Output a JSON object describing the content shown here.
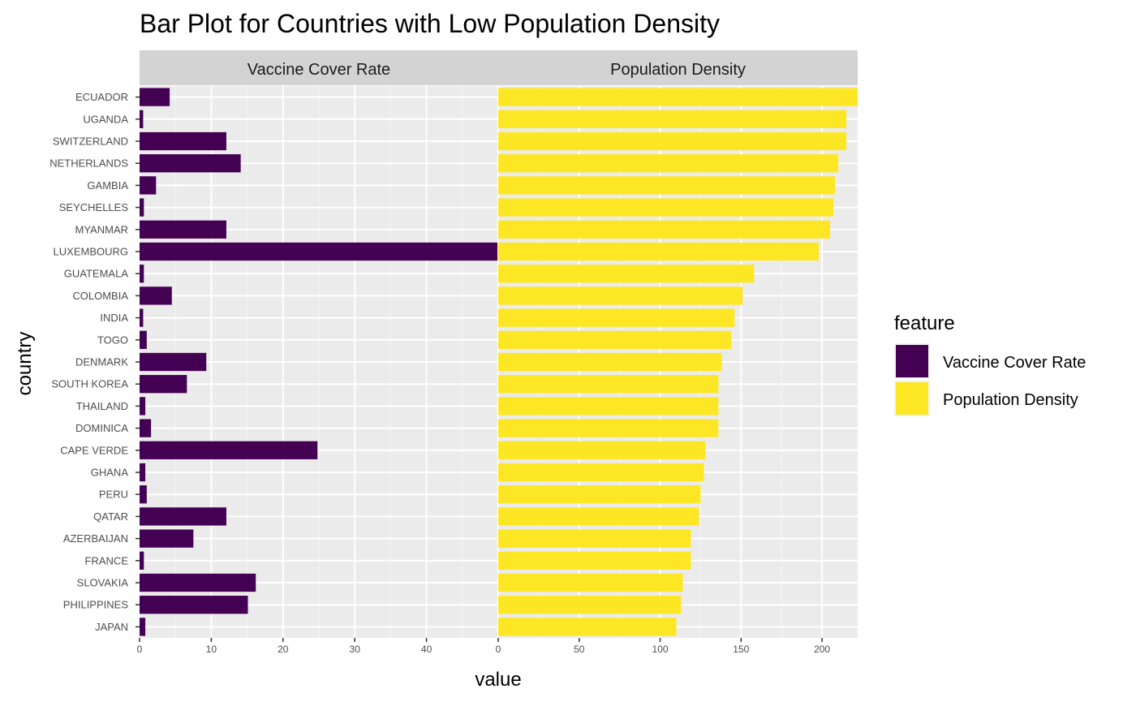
{
  "chart_data": {
    "type": "bar",
    "orientation": "horizontal",
    "title": "Bar Plot for Countries with Low Population Density",
    "xlabel": "value",
    "ylabel": "country",
    "grid": true,
    "legend": {
      "title": "feature",
      "position": "right",
      "entries": [
        {
          "name": "Vaccine Cover Rate",
          "color": "#440154"
        },
        {
          "name": "Population Density",
          "color": "#FDE725"
        }
      ]
    },
    "categories": [
      "ECUADOR",
      "UGANDA",
      "SWITZERLAND",
      "NETHERLANDS",
      "GAMBIA",
      "SEYCHELLES",
      "MYANMAR",
      "LUXEMBOURG",
      "GUATEMALA",
      "COLOMBIA",
      "INDIA",
      "TOGO",
      "DENMARK",
      "SOUTH KOREA",
      "THAILAND",
      "DOMINICA",
      "CAPE VERDE",
      "GHANA",
      "PERU",
      "QATAR",
      "AZERBAIJAN",
      "FRANCE",
      "SLOVAKIA",
      "PHILIPPINES",
      "JAPAN"
    ],
    "panels": [
      {
        "name": "Vaccine Cover Rate",
        "xlim": [
          0,
          50
        ],
        "xticks": [
          0,
          10,
          20,
          30,
          40
        ],
        "color": "#440154",
        "values": [
          4.2,
          0.5,
          12.1,
          14.1,
          2.3,
          0.6,
          12.1,
          50,
          0.6,
          4.5,
          0.5,
          1.0,
          9.3,
          6.6,
          0.8,
          1.6,
          24.8,
          0.8,
          1.0,
          12.1,
          7.5,
          0.6,
          16.2,
          15.1,
          0.8
        ]
      },
      {
        "name": "Population Density",
        "xlim": [
          0,
          222
        ],
        "xticks": [
          0,
          50,
          100,
          150,
          200
        ],
        "color": "#FDE725",
        "values": [
          222,
          215,
          215,
          210,
          208,
          207,
          205,
          198,
          158,
          151,
          146,
          144,
          138,
          136,
          136,
          136,
          128,
          127,
          125,
          124,
          119,
          119,
          114,
          113,
          110
        ]
      }
    ]
  }
}
